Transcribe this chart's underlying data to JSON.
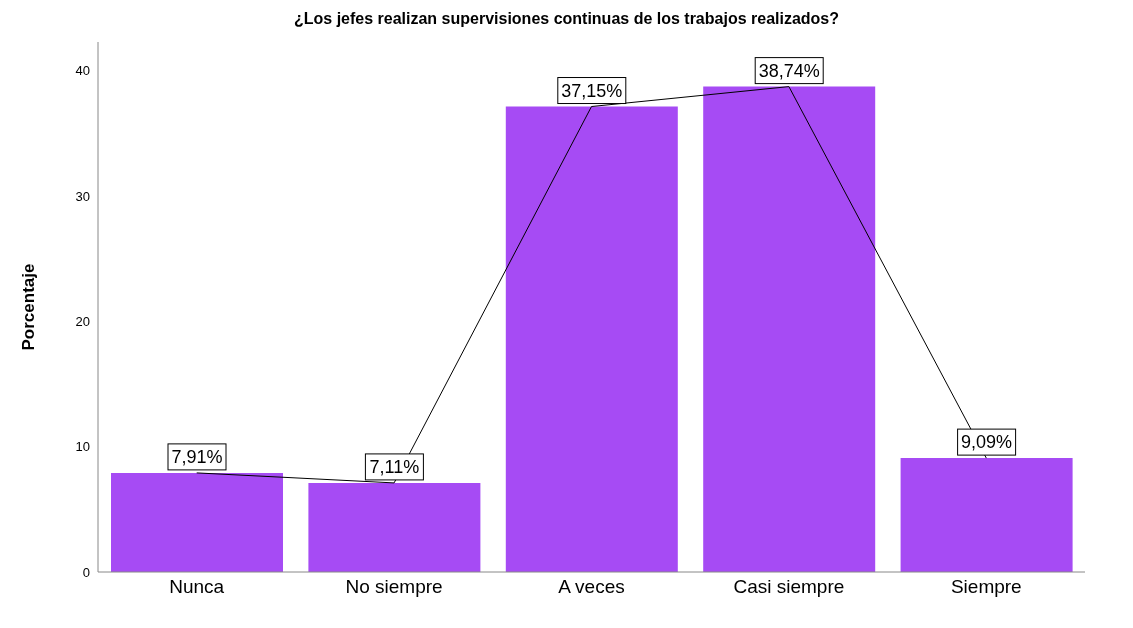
{
  "chart_data": {
    "type": "bar",
    "title": "¿Los jefes realizan supervisiones continuas de los trabajos realizados?",
    "ylabel": "Porcentaje",
    "categories": [
      "Nunca",
      "No siempre",
      "A veces",
      "Casi siempre",
      "Siempre"
    ],
    "series": [
      {
        "color": "#a64bf4",
        "values": [
          7.91,
          7.11,
          37.15,
          38.74,
          9.09
        ],
        "value_labels": [
          "7,91%",
          "7,11%",
          "37,15%",
          "38,74%",
          "9,09%"
        ]
      },
      {
        "type": "line",
        "color": "#000000",
        "values": [
          7.91,
          7.11,
          37.15,
          38.74,
          9.09
        ]
      }
    ],
    "ylim": [
      0,
      42.3
    ],
    "yticks": [
      0,
      10,
      20,
      30,
      40
    ],
    "grid": false,
    "legend": false
  }
}
